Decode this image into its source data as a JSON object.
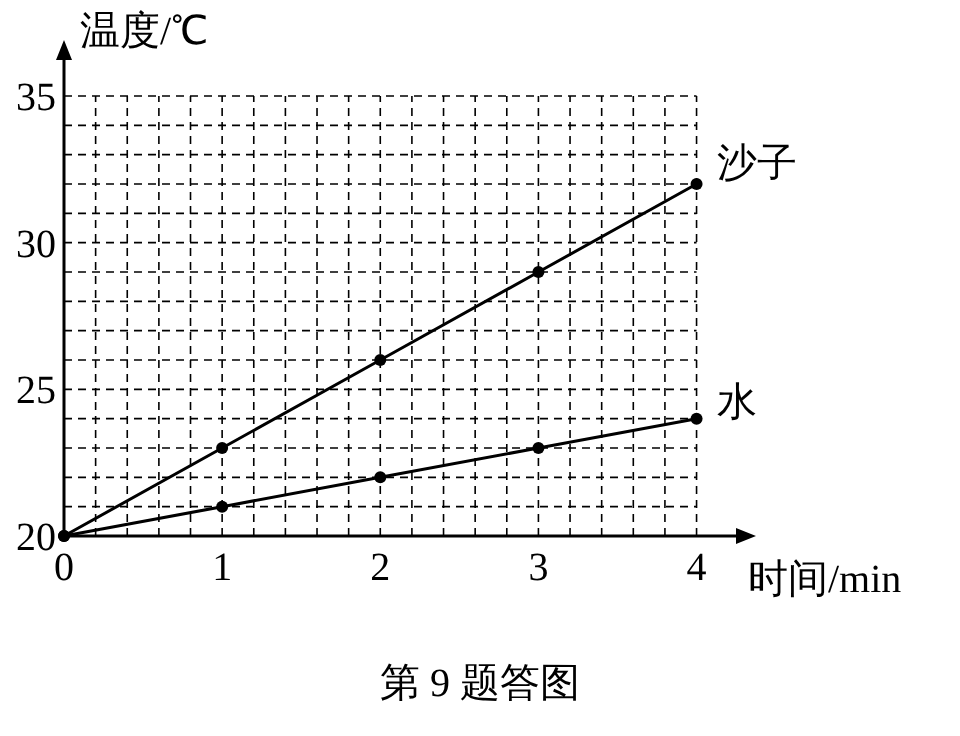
{
  "chart_data": {
    "type": "line",
    "xlabel": "时间/min",
    "ylabel": "温度/℃",
    "x": [
      0,
      1,
      2,
      3,
      4
    ],
    "series": [
      {
        "name": "沙子",
        "color": "#000000",
        "values": [
          20,
          23,
          26,
          29,
          32
        ]
      },
      {
        "name": "水",
        "color": "#000000",
        "values": [
          20,
          21,
          22,
          23,
          24
        ]
      }
    ],
    "xlim": [
      0,
      4.3
    ],
    "ylim": [
      20,
      36.5
    ],
    "xticks": [
      0,
      1,
      2,
      3,
      4
    ],
    "yticks": [
      20,
      25,
      30,
      35
    ],
    "grid": true,
    "legend": false,
    "marker": "circle",
    "line_style": "solid",
    "annotations": [
      "第 9 题答图"
    ]
  }
}
